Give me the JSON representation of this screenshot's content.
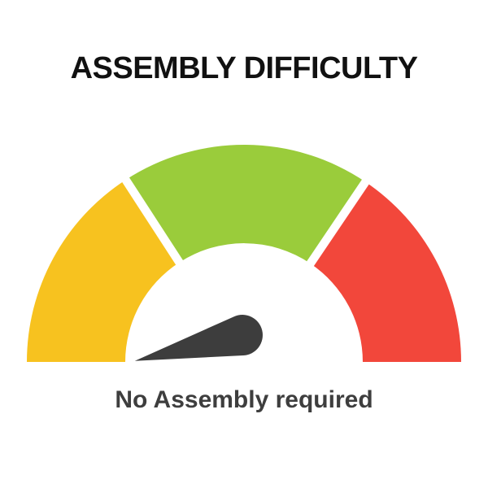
{
  "title": "ASSEMBLY DIFFICULTY",
  "caption": "No Assembly required",
  "colors": {
    "background": "#FFFFFF",
    "title_text": "#111111",
    "caption_text": "#3E3E3E",
    "needle": "#3D3D3D",
    "segment_gap": "#FFFFFF"
  },
  "chart_data": {
    "type": "gauge",
    "title": "ASSEMBLY DIFFICULTY",
    "reading_label": "No Assembly required",
    "arc_span_degrees": 180,
    "segments": [
      {
        "color_name": "yellow",
        "color": "#F7C21F",
        "start_deg": 180,
        "end_deg": 123
      },
      {
        "color_name": "green",
        "color": "#9ACC3B",
        "start_deg": 123,
        "end_deg": 56
      },
      {
        "color_name": "red",
        "color": "#F2473B",
        "start_deg": 56,
        "end_deg": 0
      }
    ],
    "needle": {
      "angle_deg_ccw_from_right": 193.5,
      "points_to_segment": "yellow"
    }
  }
}
